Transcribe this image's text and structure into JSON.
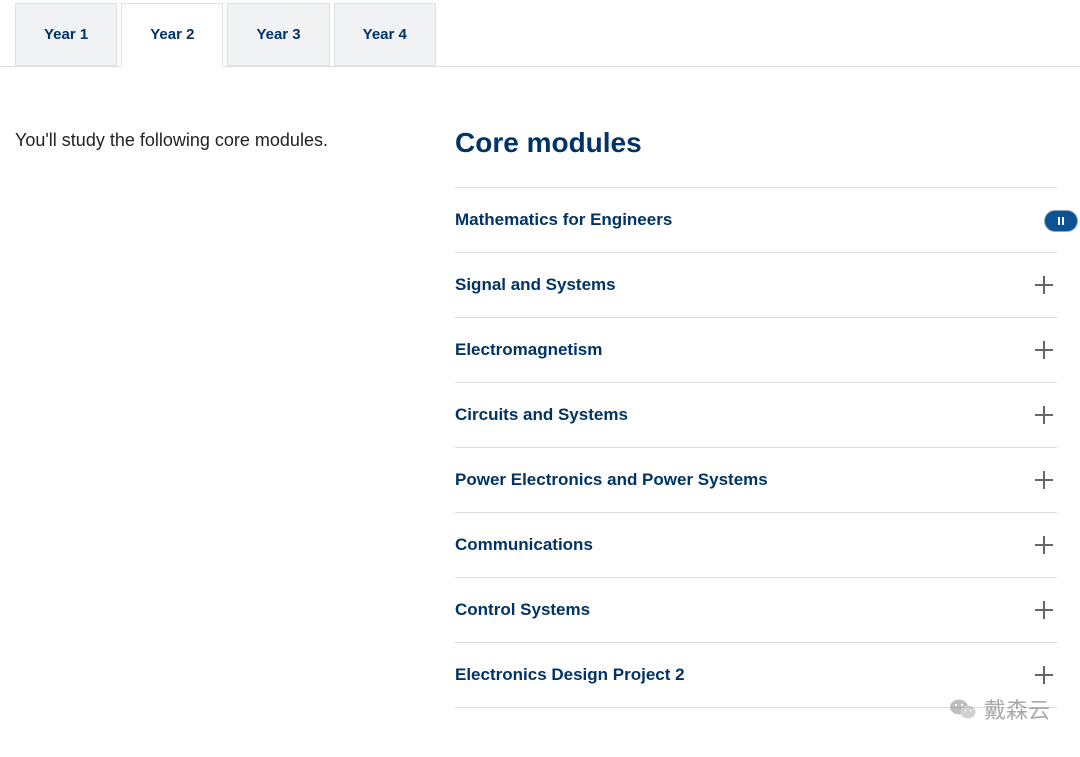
{
  "tabs": {
    "items": [
      {
        "label": "Year 1",
        "active": false
      },
      {
        "label": "Year 2",
        "active": true
      },
      {
        "label": "Year 3",
        "active": false
      },
      {
        "label": "Year 4",
        "active": false
      }
    ]
  },
  "intro": "You'll study the following core modules.",
  "section_title": "Core modules",
  "modules": [
    {
      "title": "Mathematics for Engineers",
      "show_plus": false
    },
    {
      "title": "Signal and Systems",
      "show_plus": true
    },
    {
      "title": "Electromagnetism",
      "show_plus": true
    },
    {
      "title": "Circuits and Systems",
      "show_plus": true
    },
    {
      "title": "Power Electronics and Power Systems",
      "show_plus": true
    },
    {
      "title": "Communications",
      "show_plus": true
    },
    {
      "title": "Control Systems",
      "show_plus": true
    },
    {
      "title": "Electronics Design Project 2",
      "show_plus": true
    }
  ],
  "watermark": "戴森云",
  "colors": {
    "brand": "#003366",
    "tab_bg": "#f0f2f4",
    "divider": "#dcdcdc",
    "badge": "#0b5394"
  }
}
